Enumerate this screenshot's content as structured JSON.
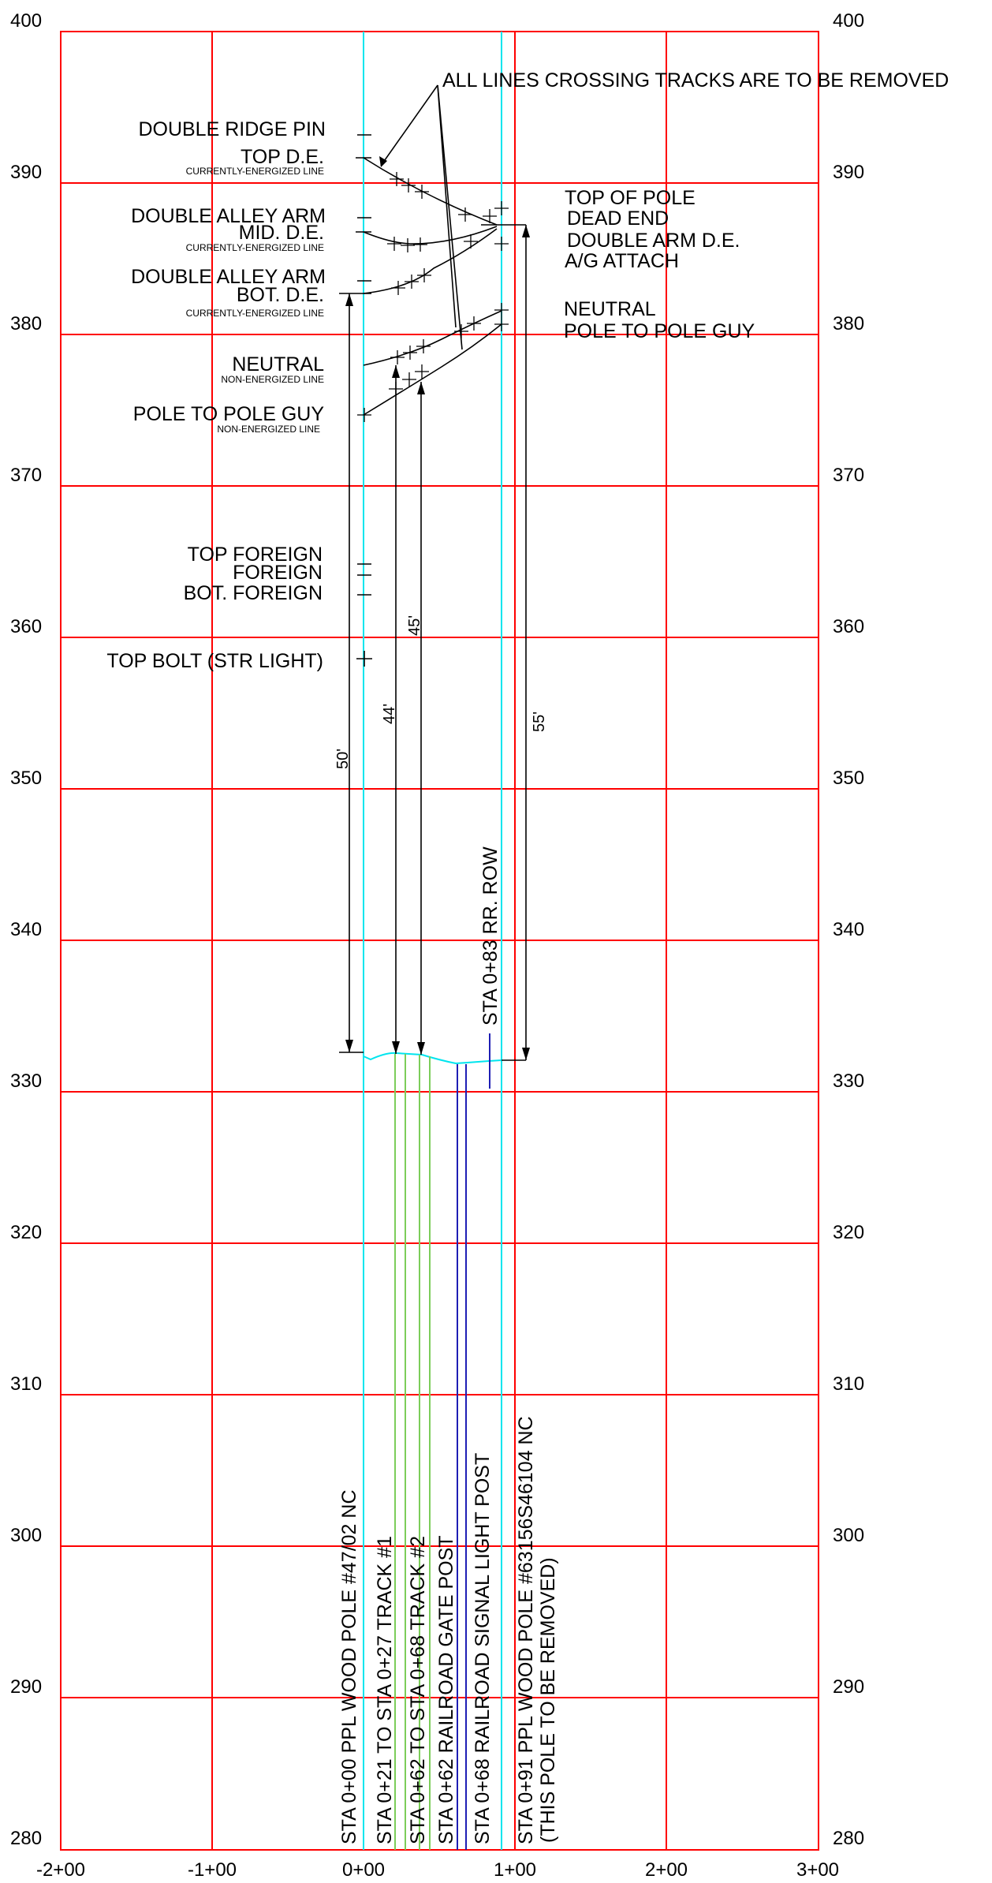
{
  "y_axis_left": [
    "400",
    "390",
    "380",
    "370",
    "360",
    "350",
    "340",
    "330",
    "320",
    "310",
    "300",
    "290",
    "280"
  ],
  "y_axis_right": [
    "400",
    "390",
    "380",
    "370",
    "360",
    "350",
    "340",
    "330",
    "320",
    "310",
    "300",
    "290",
    "280"
  ],
  "x_axis": [
    "-2+00",
    "-1+00",
    "0+00",
    "1+00",
    "2+00",
    "3+00"
  ],
  "note": "ALL LINES CROSSING TRACKS ARE TO BE REMOVED",
  "left_labels": {
    "double_ridge_pin": "DOUBLE RIDGE PIN",
    "top_de": "TOP D.E.",
    "top_de_sub": "CURRENTLY-ENERGIZED LINE",
    "double_alley_arm_1": "DOUBLE ALLEY ARM",
    "mid_de": "MID. D.E.",
    "mid_de_sub": "CURRENTLY-ENERGIZED LINE",
    "double_alley_arm_2": "DOUBLE ALLEY ARM",
    "bot_de": "BOT. D.E.",
    "bot_de_sub": "CURRENTLY-ENERGIZED LINE",
    "neutral": "NEUTRAL",
    "neutral_sub": "NON-ENERGIZED LINE",
    "pole_guy": "POLE TO POLE GUY",
    "pole_guy_sub": "NON-ENERGIZED LINE",
    "top_foreign": "TOP FOREIGN",
    "foreign": "FOREIGN",
    "bot_foreign": "BOT. FOREIGN",
    "top_bolt": "TOP BOLT (STR LIGHT)"
  },
  "right_labels": {
    "top_of_pole": "TOP OF POLE",
    "dead_end": "DEAD END",
    "double_arm_de": "DOUBLE ARM D.E.",
    "ag_attach": "A/G ATTACH",
    "neutral": "NEUTRAL",
    "pole_guy": "POLE TO POLE GUY"
  },
  "dimensions": {
    "d50": "50'",
    "d44": "44'",
    "d45": "45'",
    "d55": "55'"
  },
  "row_label": "STA 0+83 RR. ROW",
  "station_labels": [
    "STA 0+00 PPL WOOD POLE #47/02 NC",
    "STA 0+21 TO STA 0+27 TRACK #1",
    "STA 0+62 TO STA 0+68 TRACK #2",
    "STA 0+62 RAILROAD GATE POST",
    "STA 0+68 RAILROAD SIGNAL LIGHT POST",
    "STA 0+91 PPL WOOD POLE #63156S46104 NC",
    "(THIS POLE TO BE REMOVED)"
  ],
  "colors": {
    "grid": "#ff0000",
    "pole": "#00e5ee",
    "track": "#7ccd5a",
    "post": "#1f1fb4",
    "line": "#000000"
  }
}
